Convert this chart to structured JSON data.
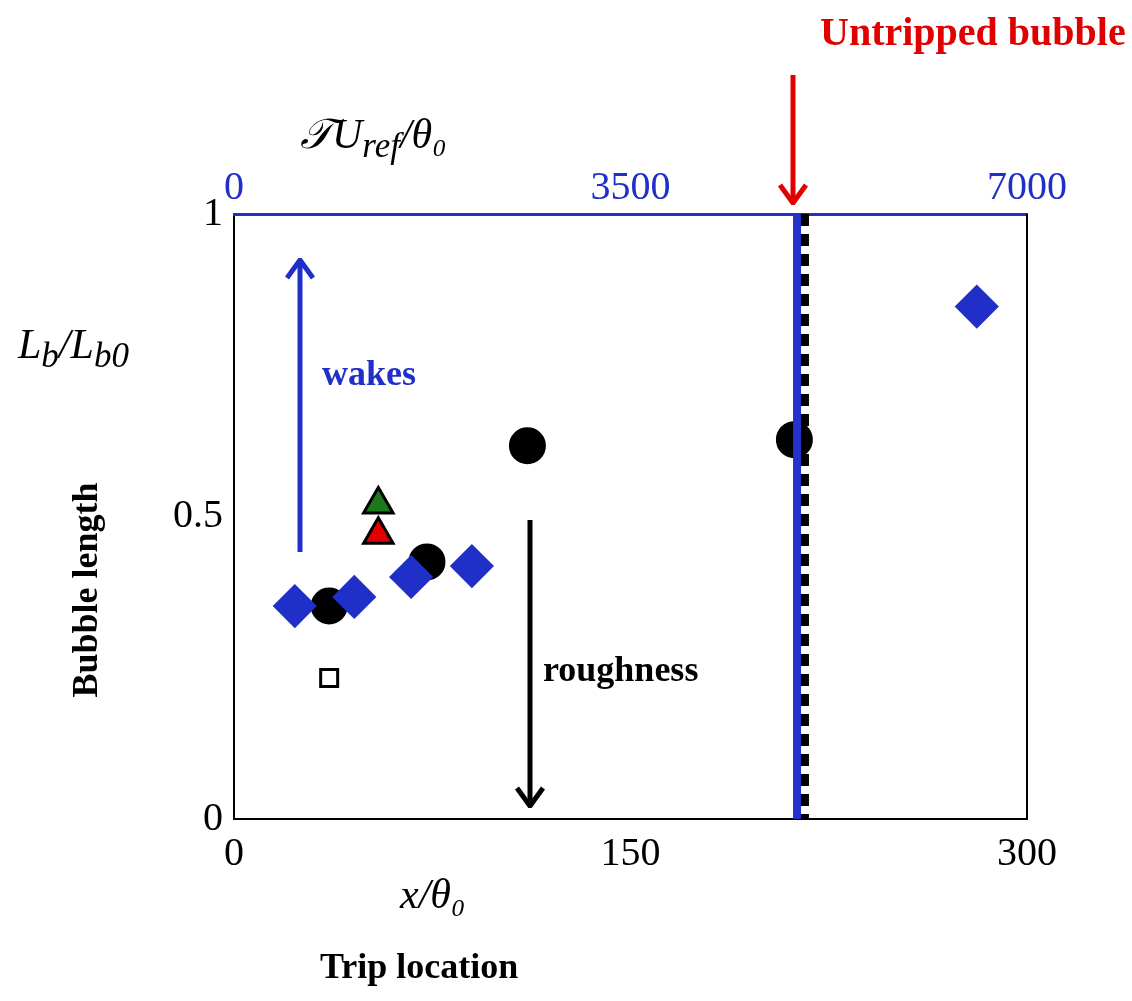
{
  "chart_data": {
    "type": "scatter",
    "xlabel": "x/θ₀",
    "ylabel": "L$_{b}$/L$_{b0}$",
    "x2label": "𝒯U$_{ref}$/θ₀",
    "xlim": [
      0,
      300
    ],
    "xticks": [
      0,
      150,
      300
    ],
    "ylim": [
      0,
      1
    ],
    "yticks": [
      0,
      0.5,
      1
    ],
    "x2lim": [
      0,
      7000
    ],
    "x2ticks": [
      0,
      3500,
      7000
    ],
    "grid": false,
    "legend": false,
    "series": [
      {
        "color": "#1f2fc8",
        "marker": "diamond",
        "x": [
          23,
          45.5,
          67,
          90,
          281
        ],
        "values": [
          0.352,
          0.367,
          0.4,
          0.418,
          0.847
        ]
      },
      {
        "color": "#000000",
        "marker": "circle",
        "x": [
          36,
          73,
          111,
          212
        ],
        "values": [
          0.352,
          0.425,
          0.617,
          0.627
        ]
      },
      {
        "color": "#1a7a1a",
        "marker": "triangle",
        "x": [
          54.6
        ],
        "values": [
          0.52
        ]
      },
      {
        "color": "#e00000",
        "marker": "triangle",
        "x": [
          54.6
        ],
        "values": [
          0.47
        ]
      },
      {
        "color": "#000000",
        "marker": "square",
        "x": [
          36
        ],
        "values": [
          0.233
        ]
      }
    ],
    "ref_lines": [
      {
        "axis": "x",
        "value": 213,
        "color": "#2233cc",
        "line_style": "solid"
      },
      {
        "axis": "x",
        "value": 216,
        "color": "#000000",
        "line_style": "dashed"
      }
    ],
    "annotations": [
      "Untripped bubble",
      "wakes",
      "roughness",
      "Bubble length",
      "Trip location"
    ]
  }
}
